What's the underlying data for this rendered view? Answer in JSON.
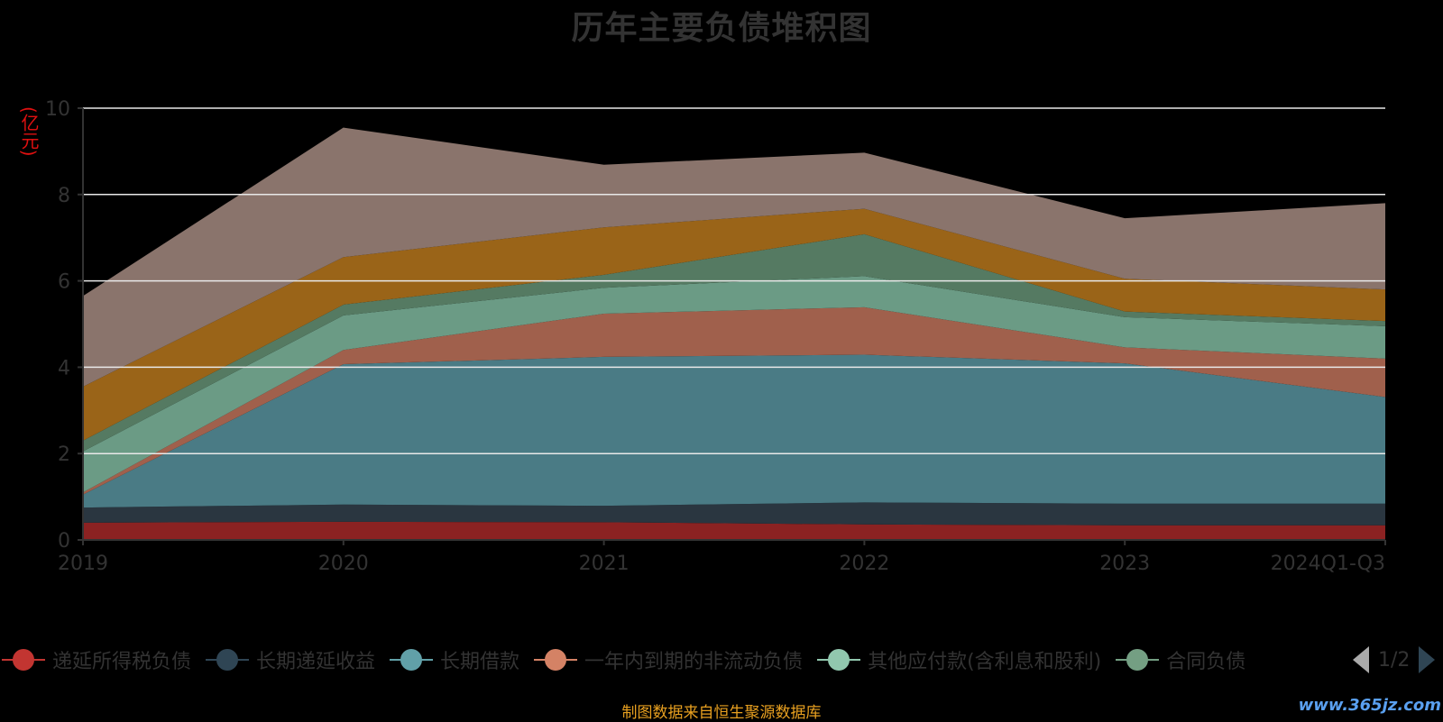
{
  "chart_data": {
    "type": "area",
    "title": "历年主要负债堆积图",
    "ylabel": "(亿元)",
    "ylim": [
      0,
      10
    ],
    "yticks": [
      0,
      2,
      4,
      6,
      8,
      10
    ],
    "x": [
      "2019",
      "2020",
      "2021",
      "2022",
      "2023",
      "2024Q1-Q3"
    ],
    "stacked": true,
    "grid": true,
    "series": [
      {
        "name": "递延所得税负债",
        "color": "#8b2222",
        "values": [
          0.4,
          0.42,
          0.41,
          0.36,
          0.34,
          0.34
        ]
      },
      {
        "name": "长期递延收益",
        "color": "#2a3640",
        "values": [
          0.35,
          0.4,
          0.38,
          0.51,
          0.5,
          0.5
        ]
      },
      {
        "name": "长期借款",
        "color": "#4a7b85",
        "values": [
          0.3,
          3.25,
          3.45,
          3.42,
          3.25,
          2.47
        ]
      },
      {
        "name": "一年内到期的非流动负债",
        "color": "#a0604c",
        "values": [
          0.05,
          0.33,
          1.0,
          1.1,
          0.37,
          0.89
        ]
      },
      {
        "name": "其他应付款(含利息和股利)",
        "color": "#6b9b85",
        "values": [
          0.95,
          0.8,
          0.6,
          0.72,
          0.7,
          0.75
        ]
      },
      {
        "name": "合同负债",
        "color": "#557a62",
        "values": [
          0.25,
          0.25,
          0.3,
          0.97,
          0.13,
          0.12
        ]
      },
      {
        "name": "",
        "color": "#9a6418",
        "values": [
          1.25,
          1.1,
          1.1,
          0.59,
          0.76,
          0.73
        ]
      },
      {
        "name": "",
        "color": "#8a746c",
        "values": [
          2.1,
          3.0,
          1.45,
          1.3,
          1.4,
          2.0
        ]
      }
    ]
  },
  "legend": {
    "visible_items": [
      {
        "name": "递延所得税负债",
        "color": "#c23531"
      },
      {
        "name": "长期递延收益",
        "color": "#2f4554"
      },
      {
        "name": "长期借款",
        "color": "#61a0a8"
      },
      {
        "name": "一年内到期的非流动负债",
        "color": "#d48265"
      },
      {
        "name": "其他应付款(含利息和股利)",
        "color": "#91c7ae"
      },
      {
        "name": "合同负债",
        "color": "#749f83"
      }
    ],
    "page": "1/2"
  },
  "source_note": "制图数据来自恒生聚源数据库",
  "watermark": "www.365jz.com"
}
